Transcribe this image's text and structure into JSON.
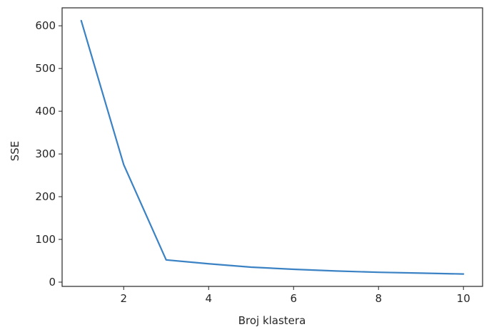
{
  "chart_data": {
    "type": "line",
    "title": "",
    "xlabel": "Broj klastera",
    "ylabel": "SSE",
    "x": [
      1,
      2,
      3,
      4,
      5,
      6,
      7,
      8,
      9,
      10
    ],
    "series": [
      {
        "values": [
          612,
          275,
          52,
          43,
          35,
          30,
          26,
          23,
          21,
          19
        ],
        "color": "#3b82c4"
      }
    ],
    "xlim": [
      0.55,
      10.45
    ],
    "ylim": [
      -10,
      642
    ],
    "xticks": [
      2,
      4,
      6,
      8,
      10
    ],
    "yticks": [
      0,
      100,
      200,
      300,
      400,
      500,
      600
    ],
    "grid": false,
    "legend": "none"
  }
}
